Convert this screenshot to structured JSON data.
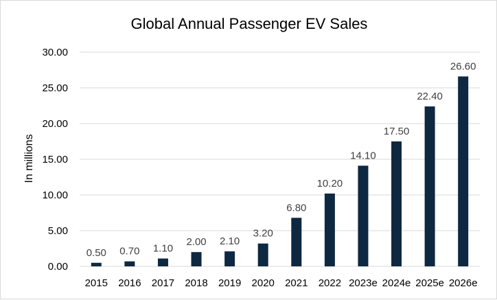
{
  "chart_data": {
    "type": "bar",
    "title": "Global Annual Passenger EV Sales",
    "ylabel": "In millions",
    "xlabel": "",
    "categories": [
      "2015",
      "2016",
      "2017",
      "2018",
      "2019",
      "2020",
      "2021",
      "2022",
      "2023e",
      "2024e",
      "2025e",
      "2026e"
    ],
    "values": [
      0.5,
      0.7,
      1.1,
      2.0,
      2.1,
      3.2,
      6.8,
      10.2,
      14.1,
      17.5,
      22.4,
      26.6
    ],
    "data_labels": [
      "0.50",
      "0.70",
      "1.10",
      "2.00",
      "2.10",
      "3.20",
      "6.80",
      "10.20",
      "14.10",
      "17.50",
      "22.40",
      "26.60"
    ],
    "ylim": [
      0,
      30
    ],
    "yticks": [
      "0.00",
      "5.00",
      "10.00",
      "15.00",
      "20.00",
      "25.00",
      "30.00"
    ],
    "grid": true,
    "legend": "none",
    "colors": {
      "bar": "#0e2841",
      "grid": "#d9d9d9",
      "label": "#404040"
    }
  }
}
